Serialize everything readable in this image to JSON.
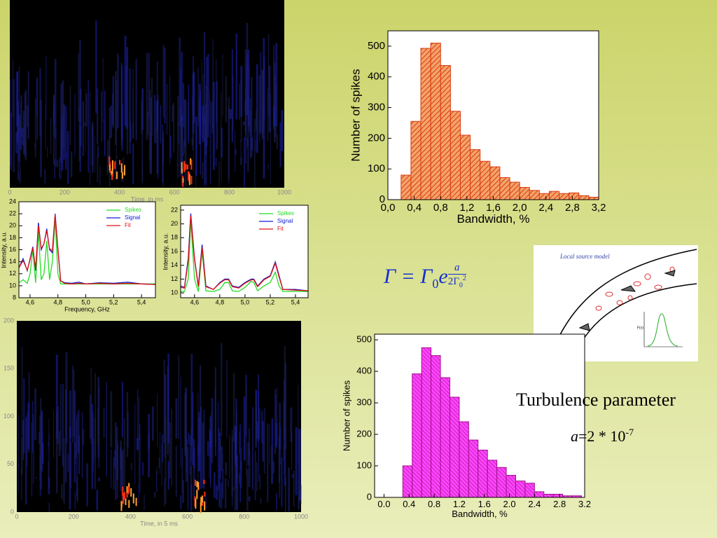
{
  "chart_data": [
    {
      "type": "histogram",
      "xlabel": "Bandwidth, %",
      "ylabel": "Number of spikes",
      "color": "#d83a10",
      "fill": "#f4a36a",
      "bins": [
        0.2,
        0.35,
        0.5,
        0.65,
        0.8,
        0.95,
        1.1,
        1.25,
        1.4,
        1.55,
        1.7,
        1.85,
        2.0,
        2.15,
        2.3,
        2.45,
        2.6,
        2.75,
        2.9,
        3.05,
        3.2
      ],
      "values": [
        80,
        255,
        493,
        510,
        437,
        288,
        210,
        163,
        125,
        107,
        72,
        57,
        40,
        30,
        20,
        27,
        20,
        22,
        13,
        8
      ],
      "xlim": [
        0,
        3.2
      ],
      "ylim": [
        0,
        550
      ],
      "xticks": [
        {
          "value": 0,
          "label": "0,0"
        },
        {
          "value": 0.4,
          "label": "0,4"
        },
        {
          "value": 0.8,
          "label": "0,8"
        },
        {
          "value": 1.2,
          "label": "1,2"
        },
        {
          "value": 1.6,
          "label": "1,6"
        },
        {
          "value": 2.0,
          "label": "2,0"
        },
        {
          "value": 2.4,
          "label": "2,4"
        },
        {
          "value": 2.8,
          "label": "2,8"
        },
        {
          "value": 3.2,
          "label": "3,2"
        }
      ],
      "yticks": [
        0,
        100,
        200,
        300,
        400,
        500
      ]
    },
    {
      "type": "histogram",
      "xlabel": "Bandwidth, %",
      "ylabel": "Number of spikes",
      "color": "#a0108a",
      "fill": "#ff44ff",
      "bins": [
        0.3,
        0.45,
        0.6,
        0.75,
        0.9,
        1.05,
        1.2,
        1.35,
        1.5,
        1.65,
        1.8,
        1.95,
        2.1,
        2.25,
        2.4,
        2.55,
        2.7,
        2.85,
        3.0,
        3.15
      ],
      "values": [
        100,
        392,
        475,
        450,
        380,
        318,
        240,
        182,
        150,
        118,
        95,
        70,
        52,
        45,
        18,
        10,
        10,
        5,
        5
      ],
      "xlim": [
        -0.15,
        3.2
      ],
      "ylim": [
        0,
        518
      ],
      "xticks": [
        {
          "value": 0,
          "label": "0.0"
        },
        0.4,
        0.8,
        1.2,
        1.6,
        {
          "value": 2.0,
          "label": "2.0"
        },
        2.4,
        2.8,
        3.2
      ],
      "yticks": [
        0,
        100,
        200,
        300,
        400,
        500
      ]
    },
    {
      "type": "line",
      "xlabel": "Frequency, GHz",
      "ylabel": "Intensity, a.u.",
      "x": [
        4.52,
        4.55,
        4.58,
        4.6,
        4.62,
        4.64,
        4.66,
        4.68,
        4.7,
        4.72,
        4.74,
        4.76,
        4.78,
        4.8,
        4.82,
        4.85,
        4.9,
        4.95,
        5.0,
        5.1,
        5.2,
        5.3,
        5.4,
        5.5
      ],
      "series": [
        {
          "name": "Spikes",
          "color": "#22dd22",
          "values": [
            10.5,
            11,
            10.4,
            12,
            16,
            10.5,
            19,
            11,
            12,
            17.5,
            11,
            14,
            21,
            12,
            10.3,
            10.3,
            10.3,
            10.3,
            10.3,
            10.3,
            10.3,
            10.3,
            10.3,
            10.3
          ]
        },
        {
          "name": "Signal",
          "color": "#1020d0",
          "values": [
            13,
            14.5,
            12.5,
            14.5,
            16.5,
            12.5,
            20.5,
            16,
            17,
            19.5,
            16,
            15.5,
            22,
            16,
            10.8,
            10.5,
            10.4,
            10.6,
            10.3,
            10.5,
            10.4,
            10.6,
            10.3,
            10.2
          ]
        },
        {
          "name": "Fit",
          "color": "#e01010",
          "values": [
            13,
            14.2,
            12.6,
            14.3,
            16.3,
            12.8,
            20,
            16.2,
            17,
            19.2,
            16.2,
            15.8,
            21.8,
            16.2,
            10.8,
            10.4,
            10.3,
            10.4,
            10.3,
            10.4,
            10.3,
            10.4,
            10.3,
            10.2
          ]
        }
      ],
      "xlim": [
        4.52,
        5.5
      ],
      "ylim": [
        8,
        24
      ],
      "xticks": [
        {
          "value": 4.6,
          "label": "4,6"
        },
        {
          "value": 4.8,
          "label": "4,8"
        },
        {
          "value": 5.0,
          "label": "5,0"
        },
        {
          "value": 5.2,
          "label": "5,2"
        },
        {
          "value": 5.4,
          "label": "5,4"
        }
      ],
      "yticks": [
        8,
        10,
        12,
        14,
        16,
        18,
        20,
        22,
        24
      ]
    },
    {
      "type": "line",
      "ylabel": "Intensity, a.u.",
      "x": [
        4.49,
        4.52,
        4.55,
        4.57,
        4.6,
        4.63,
        4.66,
        4.69,
        4.75,
        4.8,
        4.84,
        4.87,
        4.9,
        4.95,
        5.0,
        5.05,
        5.07,
        5.1,
        5.15,
        5.2,
        5.24,
        5.27,
        5.3,
        5.4,
        5.5
      ],
      "series": [
        {
          "name": "Spikes",
          "color": "#22dd22",
          "values": [
            10.2,
            10.2,
            12,
            20.5,
            12,
            10.2,
            16,
            10.3,
            10.2,
            10.5,
            11.5,
            11.5,
            10.3,
            10.2,
            10.8,
            11.7,
            11.5,
            10.3,
            11,
            11.5,
            13,
            11,
            10.2,
            10.2,
            10.2
          ]
        },
        {
          "name": "Signal",
          "color": "#1020d0",
          "values": [
            11,
            10.8,
            15,
            21.5,
            15,
            11,
            17,
            11,
            10.5,
            11.5,
            12,
            12,
            11,
            10.8,
            11.5,
            12,
            12,
            11,
            12,
            12.5,
            14.5,
            12.5,
            10.5,
            10.5,
            10.3
          ]
        },
        {
          "name": "Fit",
          "color": "#e01010",
          "values": [
            10.8,
            10.7,
            14.6,
            21.2,
            14.8,
            10.9,
            16.6,
            10.9,
            10.5,
            11.4,
            11.9,
            11.9,
            10.9,
            10.7,
            11.4,
            11.9,
            11.9,
            10.9,
            11.9,
            12.4,
            14.3,
            12.3,
            10.5,
            10.4,
            10.3
          ]
        }
      ],
      "xlim": [
        4.49,
        5.5
      ],
      "ylim": [
        9.3,
        22.7
      ],
      "xticks": [
        {
          "value": 4.6,
          "label": "4,6"
        },
        {
          "value": 4.8,
          "label": "4,8"
        },
        {
          "value": 5.0,
          "label": "5,0"
        },
        {
          "value": 5.2,
          "label": "5,2"
        },
        {
          "value": 5.4,
          "label": "5,4"
        }
      ],
      "yticks": [
        10,
        12,
        14,
        16,
        18,
        20,
        22
      ]
    },
    {
      "type": "heatmap",
      "xlabel": "Time, in ms",
      "xlim": [
        0,
        1000
      ],
      "xticks": [
        0,
        200,
        400,
        600,
        800,
        1000
      ]
    },
    {
      "type": "heatmap",
      "xlabel": "Time, in 5 ms",
      "xlim": [
        0,
        1000
      ],
      "ylim": [
        0,
        200
      ],
      "xticks": [
        0,
        200,
        400,
        600,
        800,
        1000
      ],
      "yticks": [
        0,
        50,
        100,
        150,
        200
      ]
    }
  ],
  "formula": {
    "lhs": "Γ = Γ",
    "sub": "0",
    "base": "e",
    "num": "a",
    "den": "2Γ",
    "den_sub": "0",
    "den_sup": "2"
  },
  "annotation": {
    "title": "Turbulence parameter",
    "symbol": "a",
    "value": "=2 * 10",
    "exponent": "-7"
  },
  "inset": {
    "title": "Local source model",
    "axis_label": "F(ν)"
  }
}
